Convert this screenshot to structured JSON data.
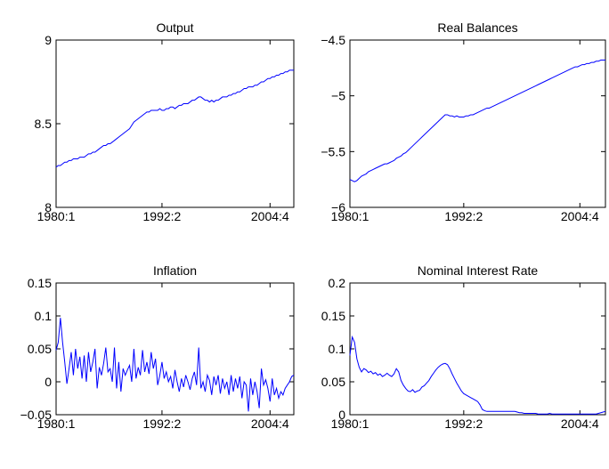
{
  "chart_data": [
    {
      "type": "line",
      "title": "Output",
      "color": "#0000ff",
      "xlim": [
        0,
        110
      ],
      "xticks": [
        {
          "value": 0,
          "label": "1980:1"
        },
        {
          "value": 49,
          "label": "1992:2"
        },
        {
          "value": 99,
          "label": "2004:4"
        }
      ],
      "ylim": [
        8,
        9
      ],
      "yticks": [
        8,
        8.5,
        9
      ],
      "values": [
        8.24,
        8.25,
        8.25,
        8.26,
        8.27,
        8.27,
        8.28,
        8.28,
        8.29,
        8.29,
        8.29,
        8.3,
        8.3,
        8.3,
        8.31,
        8.32,
        8.32,
        8.33,
        8.33,
        8.34,
        8.35,
        8.36,
        8.37,
        8.37,
        8.38,
        8.38,
        8.39,
        8.4,
        8.41,
        8.42,
        8.43,
        8.44,
        8.45,
        8.46,
        8.47,
        8.49,
        8.51,
        8.52,
        8.53,
        8.54,
        8.55,
        8.56,
        8.57,
        8.57,
        8.58,
        8.58,
        8.58,
        8.58,
        8.59,
        8.58,
        8.58,
        8.59,
        8.59,
        8.6,
        8.6,
        8.59,
        8.6,
        8.61,
        8.61,
        8.62,
        8.62,
        8.62,
        8.63,
        8.64,
        8.64,
        8.65,
        8.66,
        8.66,
        8.65,
        8.64,
        8.64,
        8.63,
        8.64,
        8.63,
        8.64,
        8.64,
        8.65,
        8.66,
        8.66,
        8.66,
        8.67,
        8.67,
        8.68,
        8.68,
        8.69,
        8.69,
        8.7,
        8.71,
        8.71,
        8.72,
        8.72,
        8.72,
        8.73,
        8.73,
        8.74,
        8.75,
        8.75,
        8.76,
        8.77,
        8.77,
        8.78,
        8.78,
        8.79,
        8.79,
        8.8,
        8.8,
        8.81,
        8.81,
        8.82,
        8.82,
        8.82
      ]
    },
    {
      "type": "line",
      "title": "Real Balances",
      "color": "#0000ff",
      "xlim": [
        0,
        110
      ],
      "xticks": [
        {
          "value": 0,
          "label": "1980:1"
        },
        {
          "value": 49,
          "label": "1992:2"
        },
        {
          "value": 99,
          "label": "2004:4"
        }
      ],
      "ylim": [
        -6,
        -4.5
      ],
      "yticks": [
        {
          "value": -6,
          "label": "−6"
        },
        {
          "value": -5.5,
          "label": "−5.5"
        },
        {
          "value": -5,
          "label": "−5"
        },
        {
          "value": -4.5,
          "label": "−4.5"
        }
      ],
      "values": [
        -5.75,
        -5.76,
        -5.77,
        -5.76,
        -5.74,
        -5.72,
        -5.71,
        -5.7,
        -5.68,
        -5.67,
        -5.66,
        -5.65,
        -5.64,
        -5.63,
        -5.62,
        -5.61,
        -5.61,
        -5.6,
        -5.59,
        -5.58,
        -5.56,
        -5.55,
        -5.54,
        -5.52,
        -5.51,
        -5.49,
        -5.47,
        -5.45,
        -5.43,
        -5.41,
        -5.39,
        -5.37,
        -5.35,
        -5.33,
        -5.31,
        -5.29,
        -5.27,
        -5.25,
        -5.23,
        -5.21,
        -5.19,
        -5.17,
        -5.17,
        -5.18,
        -5.18,
        -5.19,
        -5.18,
        -5.19,
        -5.19,
        -5.19,
        -5.18,
        -5.18,
        -5.17,
        -5.17,
        -5.16,
        -5.15,
        -5.14,
        -5.13,
        -5.12,
        -5.11,
        -5.11,
        -5.1,
        -5.09,
        -5.08,
        -5.07,
        -5.06,
        -5.05,
        -5.04,
        -5.03,
        -5.02,
        -5.01,
        -5.0,
        -4.99,
        -4.98,
        -4.97,
        -4.96,
        -4.95,
        -4.94,
        -4.93,
        -4.92,
        -4.91,
        -4.9,
        -4.89,
        -4.88,
        -4.87,
        -4.86,
        -4.85,
        -4.84,
        -4.83,
        -4.82,
        -4.81,
        -4.8,
        -4.79,
        -4.78,
        -4.77,
        -4.76,
        -4.75,
        -4.74,
        -4.74,
        -4.73,
        -4.72,
        -4.72,
        -4.71,
        -4.71,
        -4.7,
        -4.7,
        -4.69,
        -4.69,
        -4.68,
        -4.68,
        -4.68
      ]
    },
    {
      "type": "line",
      "title": "Inflation",
      "color": "#0000ff",
      "xlim": [
        0,
        110
      ],
      "xticks": [
        {
          "value": 0,
          "label": "1980:1"
        },
        {
          "value": 49,
          "label": "1992:2"
        },
        {
          "value": 99,
          "label": "2004:4"
        }
      ],
      "ylim": [
        -0.05,
        0.15
      ],
      "yticks": [
        {
          "value": -0.05,
          "label": "−0.05"
        },
        0,
        0.05,
        0.1,
        0.15
      ],
      "values": [
        0.048,
        0.06,
        0.097,
        0.06,
        0.03,
        -0.003,
        0.02,
        0.045,
        0.01,
        0.05,
        0.02,
        0.038,
        0.005,
        0.04,
        0.0,
        0.045,
        0.015,
        0.03,
        0.05,
        -0.01,
        0.022,
        0.01,
        0.028,
        0.052,
        0.015,
        0.02,
        0.0,
        0.052,
        -0.01,
        0.03,
        -0.015,
        0.02,
        0.01,
        0.018,
        0.025,
        0.0,
        0.05,
        0.005,
        0.022,
        0.01,
        0.048,
        0.015,
        0.03,
        0.012,
        0.045,
        0.02,
        0.035,
        -0.005,
        0.01,
        0.03,
        0.005,
        0.015,
        0.0,
        0.008,
        -0.01,
        0.018,
        0.0,
        -0.015,
        0.005,
        -0.008,
        0.01,
        0.0,
        -0.012,
        0.005,
        0.015,
        -0.005,
        0.052,
        -0.01,
        0.0,
        -0.015,
        0.01,
        0.002,
        -0.02,
        0.008,
        -0.005,
        0.01,
        -0.018,
        0.005,
        -0.01,
        0.0,
        -0.02,
        0.01,
        -0.015,
        0.005,
        -0.01,
        0.008,
        -0.025,
        0.0,
        -0.005,
        -0.045,
        0.005,
        -0.02,
        0.0,
        -0.015,
        -0.04,
        0.02,
        -0.005,
        0.003,
        -0.01,
        -0.03,
        0.005,
        -0.02,
        -0.01,
        -0.025,
        -0.015,
        -0.02,
        -0.01,
        -0.005,
        0.0,
        0.008,
        0.01
      ]
    },
    {
      "type": "line",
      "title": "Nominal Interest Rate",
      "color": "#0000ff",
      "xlim": [
        0,
        110
      ],
      "xticks": [
        {
          "value": 0,
          "label": "1980:1"
        },
        {
          "value": 49,
          "label": "1992:2"
        },
        {
          "value": 99,
          "label": "2004:4"
        }
      ],
      "ylim": [
        0,
        0.2
      ],
      "yticks": [
        0,
        0.05,
        0.1,
        0.15,
        0.2
      ],
      "values": [
        0.09,
        0.118,
        0.11,
        0.085,
        0.072,
        0.065,
        0.07,
        0.068,
        0.064,
        0.066,
        0.062,
        0.064,
        0.06,
        0.062,
        0.058,
        0.06,
        0.063,
        0.06,
        0.058,
        0.062,
        0.07,
        0.065,
        0.052,
        0.045,
        0.04,
        0.036,
        0.035,
        0.038,
        0.034,
        0.036,
        0.037,
        0.042,
        0.044,
        0.048,
        0.052,
        0.058,
        0.063,
        0.068,
        0.072,
        0.075,
        0.077,
        0.078,
        0.076,
        0.07,
        0.062,
        0.055,
        0.048,
        0.042,
        0.036,
        0.032,
        0.03,
        0.028,
        0.026,
        0.024,
        0.022,
        0.02,
        0.015,
        0.008,
        0.006,
        0.005,
        0.005,
        0.005,
        0.005,
        0.005,
        0.005,
        0.005,
        0.005,
        0.005,
        0.005,
        0.005,
        0.005,
        0.005,
        0.004,
        0.003,
        0.003,
        0.002,
        0.002,
        0.002,
        0.002,
        0.002,
        0.002,
        0.001,
        0.001,
        0.001,
        0.001,
        0.001,
        0.002,
        0.001,
        0.001,
        0.001,
        0.001,
        0.001,
        0.001,
        0.001,
        0.001,
        0.001,
        0.001,
        0.001,
        0.001,
        0.001,
        0.001,
        0.001,
        0.001,
        0.001,
        0.001,
        0.001,
        0.001,
        0.002,
        0.003,
        0.004,
        0.005
      ]
    }
  ]
}
